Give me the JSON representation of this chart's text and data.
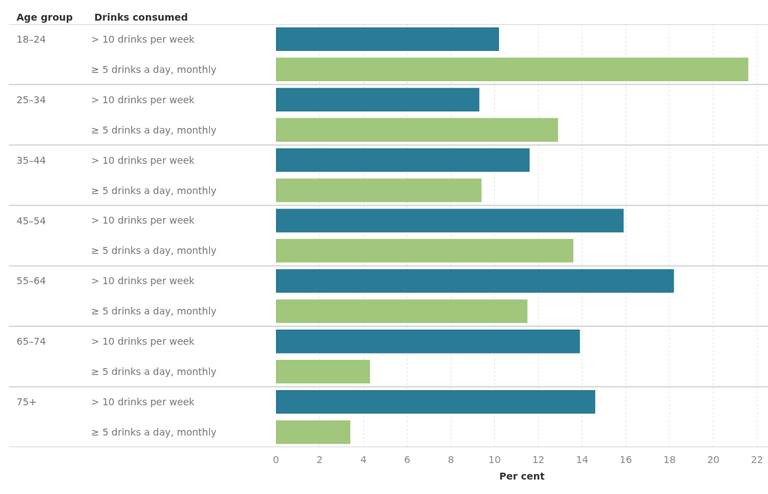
{
  "chart_data": {
    "type": "bar",
    "orientation": "horizontal",
    "xlabel": "Per cent",
    "annotations": [
      "Age group",
      "Drinks consumed",
      "18–24",
      "25–34",
      "35–44",
      "45–54",
      "55–64",
      "65–74",
      "75+"
    ],
    "categories": [
      "> 10 drinks per week",
      "≥ 5 drinks a day, monthly",
      "> 10 drinks per week",
      "≥ 5 drinks a day, monthly",
      "> 10 drinks per week",
      "≥ 5 drinks a day, monthly",
      "> 10 drinks per week",
      "≥ 5 drinks a day, monthly",
      "> 10 drinks per week",
      "≥ 5 drinks a day, monthly",
      "> 10 drinks per week",
      "≥ 5 drinks a day, monthly",
      "> 10 drinks per week",
      "≥ 5 drinks a day, monthly"
    ],
    "values": [
      10.2,
      21.6,
      9.3,
      12.9,
      11.6,
      9.4,
      15.9,
      13.6,
      18.2,
      11.5,
      13.9,
      4.3,
      14.6,
      3.4
    ],
    "colors": [
      "#2a7b96",
      "#a0c77c",
      "#2a7b96",
      "#a0c77c",
      "#2a7b96",
      "#a0c77c",
      "#2a7b96",
      "#a0c77c",
      "#2a7b96",
      "#a0c77c",
      "#2a7b96",
      "#a0c77c",
      "#2a7b96",
      "#a0c77c"
    ],
    "xlim": [
      0,
      22.5
    ],
    "xticks": [
      0,
      2,
      4,
      6,
      8,
      10,
      12,
      14,
      16,
      18,
      20,
      22
    ],
    "grid": "x"
  }
}
